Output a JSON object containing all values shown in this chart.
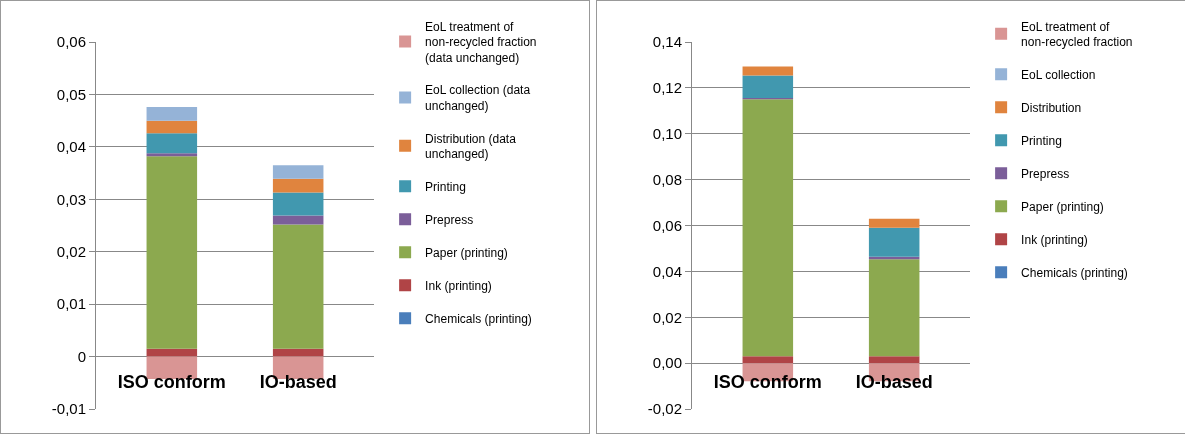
{
  "chart_data": [
    {
      "type": "bar",
      "stacked": true,
      "categories": [
        "ISO conform",
        "IO-based"
      ],
      "ylim": [
        -0.01,
        0.06
      ],
      "yticks": [
        {
          "value": -0.01,
          "label": "-0,01"
        },
        {
          "value": 0,
          "label": "0"
        },
        {
          "value": 0.01,
          "label": "0,01"
        },
        {
          "value": 0.02,
          "label": "0,02"
        },
        {
          "value": 0.03,
          "label": "0,03"
        },
        {
          "value": 0.04,
          "label": "0,04"
        },
        {
          "value": 0.05,
          "label": "0,05"
        },
        {
          "value": 0.06,
          "label": "0,06"
        }
      ],
      "grid": "y",
      "legend": "right",
      "series": [
        {
          "name": "Chemicals (printing)",
          "color": "#4a7ebb",
          "values": [
            0,
            0
          ]
        },
        {
          "name": "Ink (printing)",
          "color": "#b04446",
          "values": [
            0.0015,
            0.0015
          ]
        },
        {
          "name": "Paper (printing)",
          "color": "#8ca94f",
          "values": [
            0.0367,
            0.0237
          ]
        },
        {
          "name": "Prepress",
          "color": "#7b5e99",
          "values": [
            0.0006,
            0.0017
          ]
        },
        {
          "name": "Printing",
          "color": "#4198af",
          "values": [
            0.0038,
            0.0044
          ]
        },
        {
          "name": "Distribution (data unchanged)",
          "color": "#e0843e",
          "values": [
            0.0024,
            0.0026
          ]
        },
        {
          "name": "EoL collection (data unchanged)",
          "color": "#95b3d7",
          "values": [
            0.0026,
            0.0026
          ]
        },
        {
          "name": "EoL treatment of non-recycled fraction (data unchanged)",
          "color": "#d99594",
          "values": [
            -0.0043,
            -0.0043
          ]
        }
      ]
    },
    {
      "type": "bar",
      "stacked": true,
      "categories": [
        "ISO conform",
        "IO-based"
      ],
      "ylim": [
        -0.02,
        0.14
      ],
      "yticks": [
        {
          "value": -0.02,
          "label": "-0,02"
        },
        {
          "value": 0,
          "label": "0,00"
        },
        {
          "value": 0.02,
          "label": "0,02"
        },
        {
          "value": 0.04,
          "label": "0,04"
        },
        {
          "value": 0.06,
          "label": "0,06"
        },
        {
          "value": 0.08,
          "label": "0,08"
        },
        {
          "value": 0.1,
          "label": "0,10"
        },
        {
          "value": 0.12,
          "label": "0,12"
        },
        {
          "value": 0.14,
          "label": "0,14"
        }
      ],
      "grid": "y",
      "legend": "right",
      "series": [
        {
          "name": "Chemicals (printing)",
          "color": "#4a7ebb",
          "values": [
            0,
            0
          ]
        },
        {
          "name": "Ink (printing)",
          "color": "#b04446",
          "values": [
            0.003,
            0.003
          ]
        },
        {
          "name": "Paper (printing)",
          "color": "#8ca94f",
          "values": [
            0.112,
            0.0423
          ]
        },
        {
          "name": "Prepress",
          "color": "#7b5e99",
          "values": [
            0.0006,
            0.0011
          ]
        },
        {
          "name": "Printing",
          "color": "#4198af",
          "values": [
            0.0098,
            0.0126
          ]
        },
        {
          "name": "Distribution",
          "color": "#e0843e",
          "values": [
            0.0039,
            0.0039
          ]
        },
        {
          "name": "EoL collection",
          "color": "#95b3d7",
          "values": [
            0,
            0
          ]
        },
        {
          "name": "EoL treatment of non-recycled fraction",
          "color": "#d99594",
          "values": [
            -0.0079,
            -0.0079
          ]
        }
      ]
    }
  ]
}
